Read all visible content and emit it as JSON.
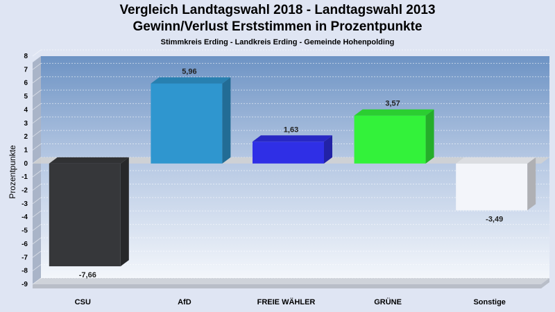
{
  "chart_data": {
    "type": "bar",
    "title": "Vergleich Landtagswahl 2018 - Landtagswahl 2013",
    "title2": "Gewinn/Verlust Erststimmen in Prozentpunkte",
    "subtitle": "Stimmkreis Erding - Landkreis Erding - Gemeinde Hohenpolding",
    "ylabel": "Prozentpunkte",
    "xlabel": "",
    "ylim": [
      -9,
      8
    ],
    "yticks": [
      8,
      7,
      6,
      5,
      4,
      3,
      2,
      1,
      0,
      -1,
      -2,
      -3,
      -4,
      -5,
      -6,
      -7,
      -8,
      -9
    ],
    "categories": [
      "CSU",
      "AfD",
      "FREIE WÄHLER",
      "GRÜNE",
      "Sonstige"
    ],
    "values": [
      -7.66,
      5.96,
      1.63,
      3.57,
      -3.49
    ],
    "value_labels": [
      "-7,66",
      "5,96",
      "1,63",
      "3,57",
      "-3,49"
    ],
    "colors": [
      "#36373a",
      "#2f96cf",
      "#2f2fe6",
      "#33f23a",
      "#f3f5fa"
    ],
    "grid": true,
    "legend": "none"
  }
}
